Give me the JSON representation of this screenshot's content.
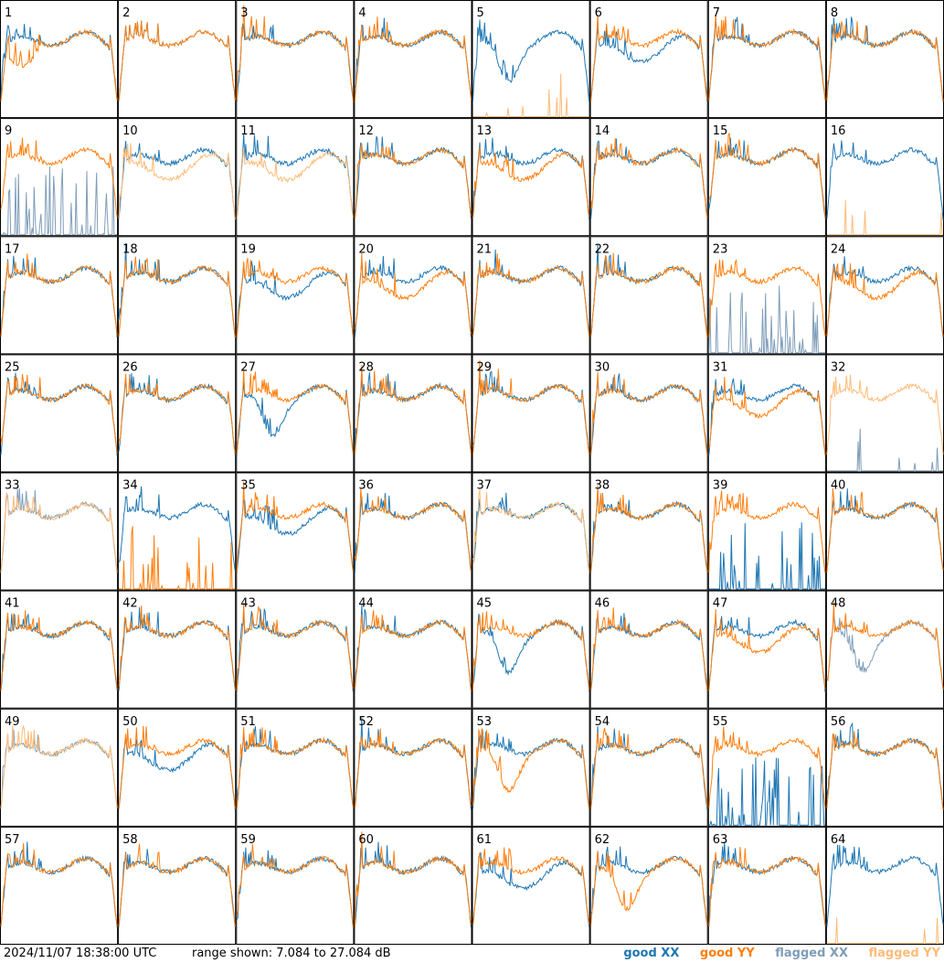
{
  "timestamp": "2024/11/07 18:38:00 UTC",
  "range_text": "range shown: 7.084 to 27.084 dB",
  "legend": {
    "good_xx": "good XX",
    "good_yy": "good YY",
    "flagged_xx": "flagged XX",
    "flagged_yy": "flagged YY"
  },
  "colors": {
    "good_xx": "#1f77b4",
    "good_yy": "#ff7f0e",
    "flagged_xx": "#7f9db9",
    "flagged_yy": "#ffbb78"
  },
  "chart_data": {
    "type": "line",
    "ylim": [
      7.084,
      27.084
    ],
    "grid_rows": 8,
    "grid_cols": 8,
    "tiles": [
      {
        "id": "1",
        "xx": "good",
        "yy": "good",
        "shape_xx": "normal",
        "shape_yy": "low_start"
      },
      {
        "id": "2",
        "xx": "good",
        "yy": "good",
        "shape_xx": "normal",
        "shape_yy": "normal"
      },
      {
        "id": "3",
        "xx": "good",
        "yy": "good",
        "shape_xx": "normal",
        "shape_yy": "normal"
      },
      {
        "id": "4",
        "xx": "good",
        "yy": "good",
        "shape_xx": "normal",
        "shape_yy": "normal"
      },
      {
        "id": "5",
        "xx": "good",
        "yy": "flagged",
        "shape_xx": "dip",
        "shape_yy": "dead"
      },
      {
        "id": "6",
        "xx": "good",
        "yy": "good",
        "shape_xx": "low",
        "shape_yy": "normal"
      },
      {
        "id": "7",
        "xx": "good",
        "yy": "good",
        "shape_xx": "normal",
        "shape_yy": "normal"
      },
      {
        "id": "8",
        "xx": "good",
        "yy": "good",
        "shape_xx": "normal",
        "shape_yy": "normal"
      },
      {
        "id": "9",
        "xx": "flagged",
        "yy": "good",
        "shape_xx": "spiky_dead",
        "shape_yy": "normal"
      },
      {
        "id": "10",
        "xx": "good",
        "yy": "flagged",
        "shape_xx": "normal",
        "shape_yy": "low"
      },
      {
        "id": "11",
        "xx": "good",
        "yy": "flagged",
        "shape_xx": "normal",
        "shape_yy": "low"
      },
      {
        "id": "12",
        "xx": "good",
        "yy": "good",
        "shape_xx": "normal",
        "shape_yy": "normal"
      },
      {
        "id": "13",
        "xx": "good",
        "yy": "good",
        "shape_xx": "normal",
        "shape_yy": "low"
      },
      {
        "id": "14",
        "xx": "good",
        "yy": "good",
        "shape_xx": "normal",
        "shape_yy": "normal"
      },
      {
        "id": "15",
        "xx": "good",
        "yy": "good",
        "shape_xx": "normal",
        "shape_yy": "normal"
      },
      {
        "id": "16",
        "xx": "good",
        "yy": "flagged",
        "shape_xx": "normal",
        "shape_yy": "dead"
      },
      {
        "id": "17",
        "xx": "good",
        "yy": "good",
        "shape_xx": "normal",
        "shape_yy": "normal"
      },
      {
        "id": "18",
        "xx": "good",
        "yy": "good",
        "shape_xx": "normal",
        "shape_yy": "normal"
      },
      {
        "id": "19",
        "xx": "good",
        "yy": "good",
        "shape_xx": "low",
        "shape_yy": "normal"
      },
      {
        "id": "20",
        "xx": "good",
        "yy": "good",
        "shape_xx": "normal",
        "shape_yy": "low"
      },
      {
        "id": "21",
        "xx": "good",
        "yy": "good",
        "shape_xx": "normal",
        "shape_yy": "normal"
      },
      {
        "id": "22",
        "xx": "good",
        "yy": "good",
        "shape_xx": "normal",
        "shape_yy": "normal"
      },
      {
        "id": "23",
        "xx": "flagged",
        "yy": "good",
        "shape_xx": "spiky_dead",
        "shape_yy": "normal"
      },
      {
        "id": "24",
        "xx": "good",
        "yy": "good",
        "shape_xx": "normal",
        "shape_yy": "low"
      },
      {
        "id": "25",
        "xx": "good",
        "yy": "good",
        "shape_xx": "normal",
        "shape_yy": "normal"
      },
      {
        "id": "26",
        "xx": "good",
        "yy": "good",
        "shape_xx": "normal",
        "shape_yy": "normal"
      },
      {
        "id": "27",
        "xx": "good",
        "yy": "good",
        "shape_xx": "dip",
        "shape_yy": "normal"
      },
      {
        "id": "28",
        "xx": "good",
        "yy": "good",
        "shape_xx": "normal",
        "shape_yy": "normal"
      },
      {
        "id": "29",
        "xx": "good",
        "yy": "good",
        "shape_xx": "normal",
        "shape_yy": "normal"
      },
      {
        "id": "30",
        "xx": "good",
        "yy": "good",
        "shape_xx": "normal",
        "shape_yy": "normal"
      },
      {
        "id": "31",
        "xx": "good",
        "yy": "good",
        "shape_xx": "normal",
        "shape_yy": "low"
      },
      {
        "id": "32",
        "xx": "flagged",
        "yy": "flagged",
        "shape_xx": "dead",
        "shape_yy": "normal"
      },
      {
        "id": "33",
        "xx": "flagged",
        "yy": "flagged",
        "shape_xx": "normal",
        "shape_yy": "normal"
      },
      {
        "id": "34",
        "xx": "good",
        "yy": "good",
        "shape_xx": "normal",
        "shape_yy": "spiky_dead"
      },
      {
        "id": "35",
        "xx": "good",
        "yy": "good",
        "shape_xx": "low",
        "shape_yy": "normal"
      },
      {
        "id": "36",
        "xx": "good",
        "yy": "good",
        "shape_xx": "normal",
        "shape_yy": "normal"
      },
      {
        "id": "37",
        "xx": "good",
        "yy": "flagged",
        "shape_xx": "normal",
        "shape_yy": "normal"
      },
      {
        "id": "38",
        "xx": "good",
        "yy": "good",
        "shape_xx": "normal",
        "shape_yy": "normal"
      },
      {
        "id": "39",
        "xx": "good",
        "yy": "good",
        "shape_xx": "spiky_dead",
        "shape_yy": "normal"
      },
      {
        "id": "40",
        "xx": "good",
        "yy": "good",
        "shape_xx": "normal",
        "shape_yy": "normal"
      },
      {
        "id": "41",
        "xx": "good",
        "yy": "good",
        "shape_xx": "normal",
        "shape_yy": "normal"
      },
      {
        "id": "42",
        "xx": "good",
        "yy": "good",
        "shape_xx": "normal",
        "shape_yy": "normal"
      },
      {
        "id": "43",
        "xx": "good",
        "yy": "good",
        "shape_xx": "normal",
        "shape_yy": "normal"
      },
      {
        "id": "44",
        "xx": "good",
        "yy": "good",
        "shape_xx": "normal",
        "shape_yy": "normal"
      },
      {
        "id": "45",
        "xx": "good",
        "yy": "good",
        "shape_xx": "dip",
        "shape_yy": "normal"
      },
      {
        "id": "46",
        "xx": "good",
        "yy": "good",
        "shape_xx": "normal",
        "shape_yy": "normal"
      },
      {
        "id": "47",
        "xx": "good",
        "yy": "good",
        "shape_xx": "normal",
        "shape_yy": "low"
      },
      {
        "id": "48",
        "xx": "flagged",
        "yy": "good",
        "shape_xx": "dip",
        "shape_yy": "normal"
      },
      {
        "id": "49",
        "xx": "flagged",
        "yy": "flagged",
        "shape_xx": "normal",
        "shape_yy": "normal"
      },
      {
        "id": "50",
        "xx": "good",
        "yy": "good",
        "shape_xx": "low",
        "shape_yy": "normal"
      },
      {
        "id": "51",
        "xx": "good",
        "yy": "good",
        "shape_xx": "normal",
        "shape_yy": "normal"
      },
      {
        "id": "52",
        "xx": "good",
        "yy": "good",
        "shape_xx": "normal",
        "shape_yy": "normal"
      },
      {
        "id": "53",
        "xx": "good",
        "yy": "good",
        "shape_xx": "normal",
        "shape_yy": "dip"
      },
      {
        "id": "54",
        "xx": "good",
        "yy": "good",
        "shape_xx": "normal",
        "shape_yy": "normal"
      },
      {
        "id": "55",
        "xx": "good",
        "yy": "good",
        "shape_xx": "spiky_dead",
        "shape_yy": "normal"
      },
      {
        "id": "56",
        "xx": "good",
        "yy": "good",
        "shape_xx": "normal",
        "shape_yy": "normal"
      },
      {
        "id": "57",
        "xx": "good",
        "yy": "good",
        "shape_xx": "normal",
        "shape_yy": "normal"
      },
      {
        "id": "58",
        "xx": "good",
        "yy": "good",
        "shape_xx": "normal",
        "shape_yy": "normal"
      },
      {
        "id": "59",
        "xx": "good",
        "yy": "good",
        "shape_xx": "normal",
        "shape_yy": "normal"
      },
      {
        "id": "60",
        "xx": "good",
        "yy": "good",
        "shape_xx": "normal",
        "shape_yy": "normal"
      },
      {
        "id": "61",
        "xx": "good",
        "yy": "good",
        "shape_xx": "low",
        "shape_yy": "normal"
      },
      {
        "id": "62",
        "xx": "good",
        "yy": "good",
        "shape_xx": "normal",
        "shape_yy": "dip"
      },
      {
        "id": "63",
        "xx": "good",
        "yy": "good",
        "shape_xx": "normal",
        "shape_yy": "normal"
      },
      {
        "id": "64",
        "xx": "good",
        "yy": "flagged",
        "shape_xx": "normal",
        "shape_yy": "dead"
      }
    ]
  }
}
